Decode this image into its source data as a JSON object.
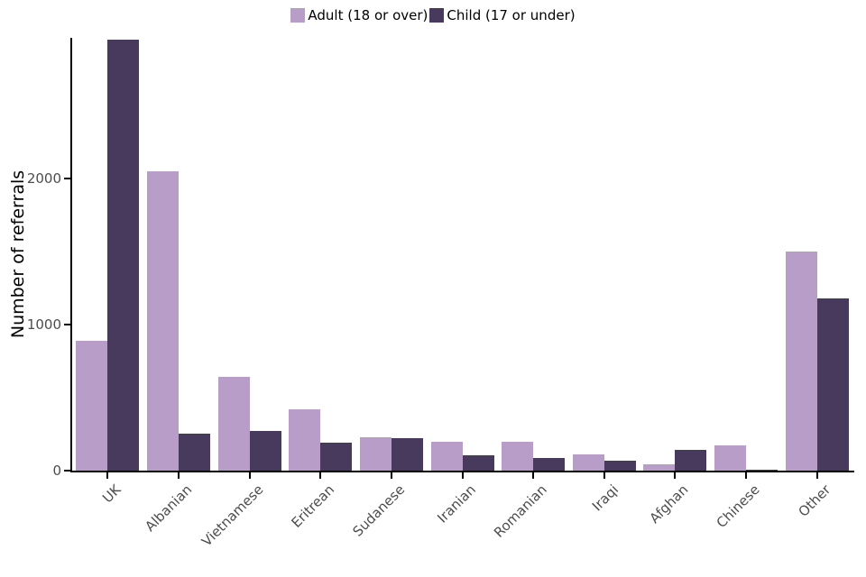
{
  "chart_data": {
    "type": "bar",
    "title": "",
    "xlabel": "",
    "ylabel": "Number of referrals",
    "categories": [
      "UK",
      "Albanian",
      "Vietnamese",
      "Eritrean",
      "Sudanese",
      "Iranian",
      "Romanian",
      "Iraqi",
      "Afghan",
      "Chinese",
      "Other"
    ],
    "series": [
      {
        "name": "Adult (18 or over)",
        "color": "#b79dc8",
        "values": [
          890,
          2050,
          640,
          420,
          230,
          200,
          195,
          110,
          45,
          170,
          1500
        ]
      },
      {
        "name": "Child (17 or under)",
        "color": "#473a5d",
        "values": [
          2950,
          250,
          270,
          190,
          220,
          105,
          85,
          70,
          140,
          5,
          1175
        ]
      }
    ],
    "yticks": [
      0,
      1000,
      2000
    ],
    "ytick_labels": [
      "0",
      "1000",
      "2000"
    ],
    "ylim": [
      0,
      2960
    ],
    "grid": false,
    "legend_position": "top",
    "colors": {
      "adult": "#b79dc8",
      "child": "#473a5d",
      "axis_line": "#000000",
      "tick_label": "#4d4d4d",
      "background": "#ffffff"
    }
  }
}
